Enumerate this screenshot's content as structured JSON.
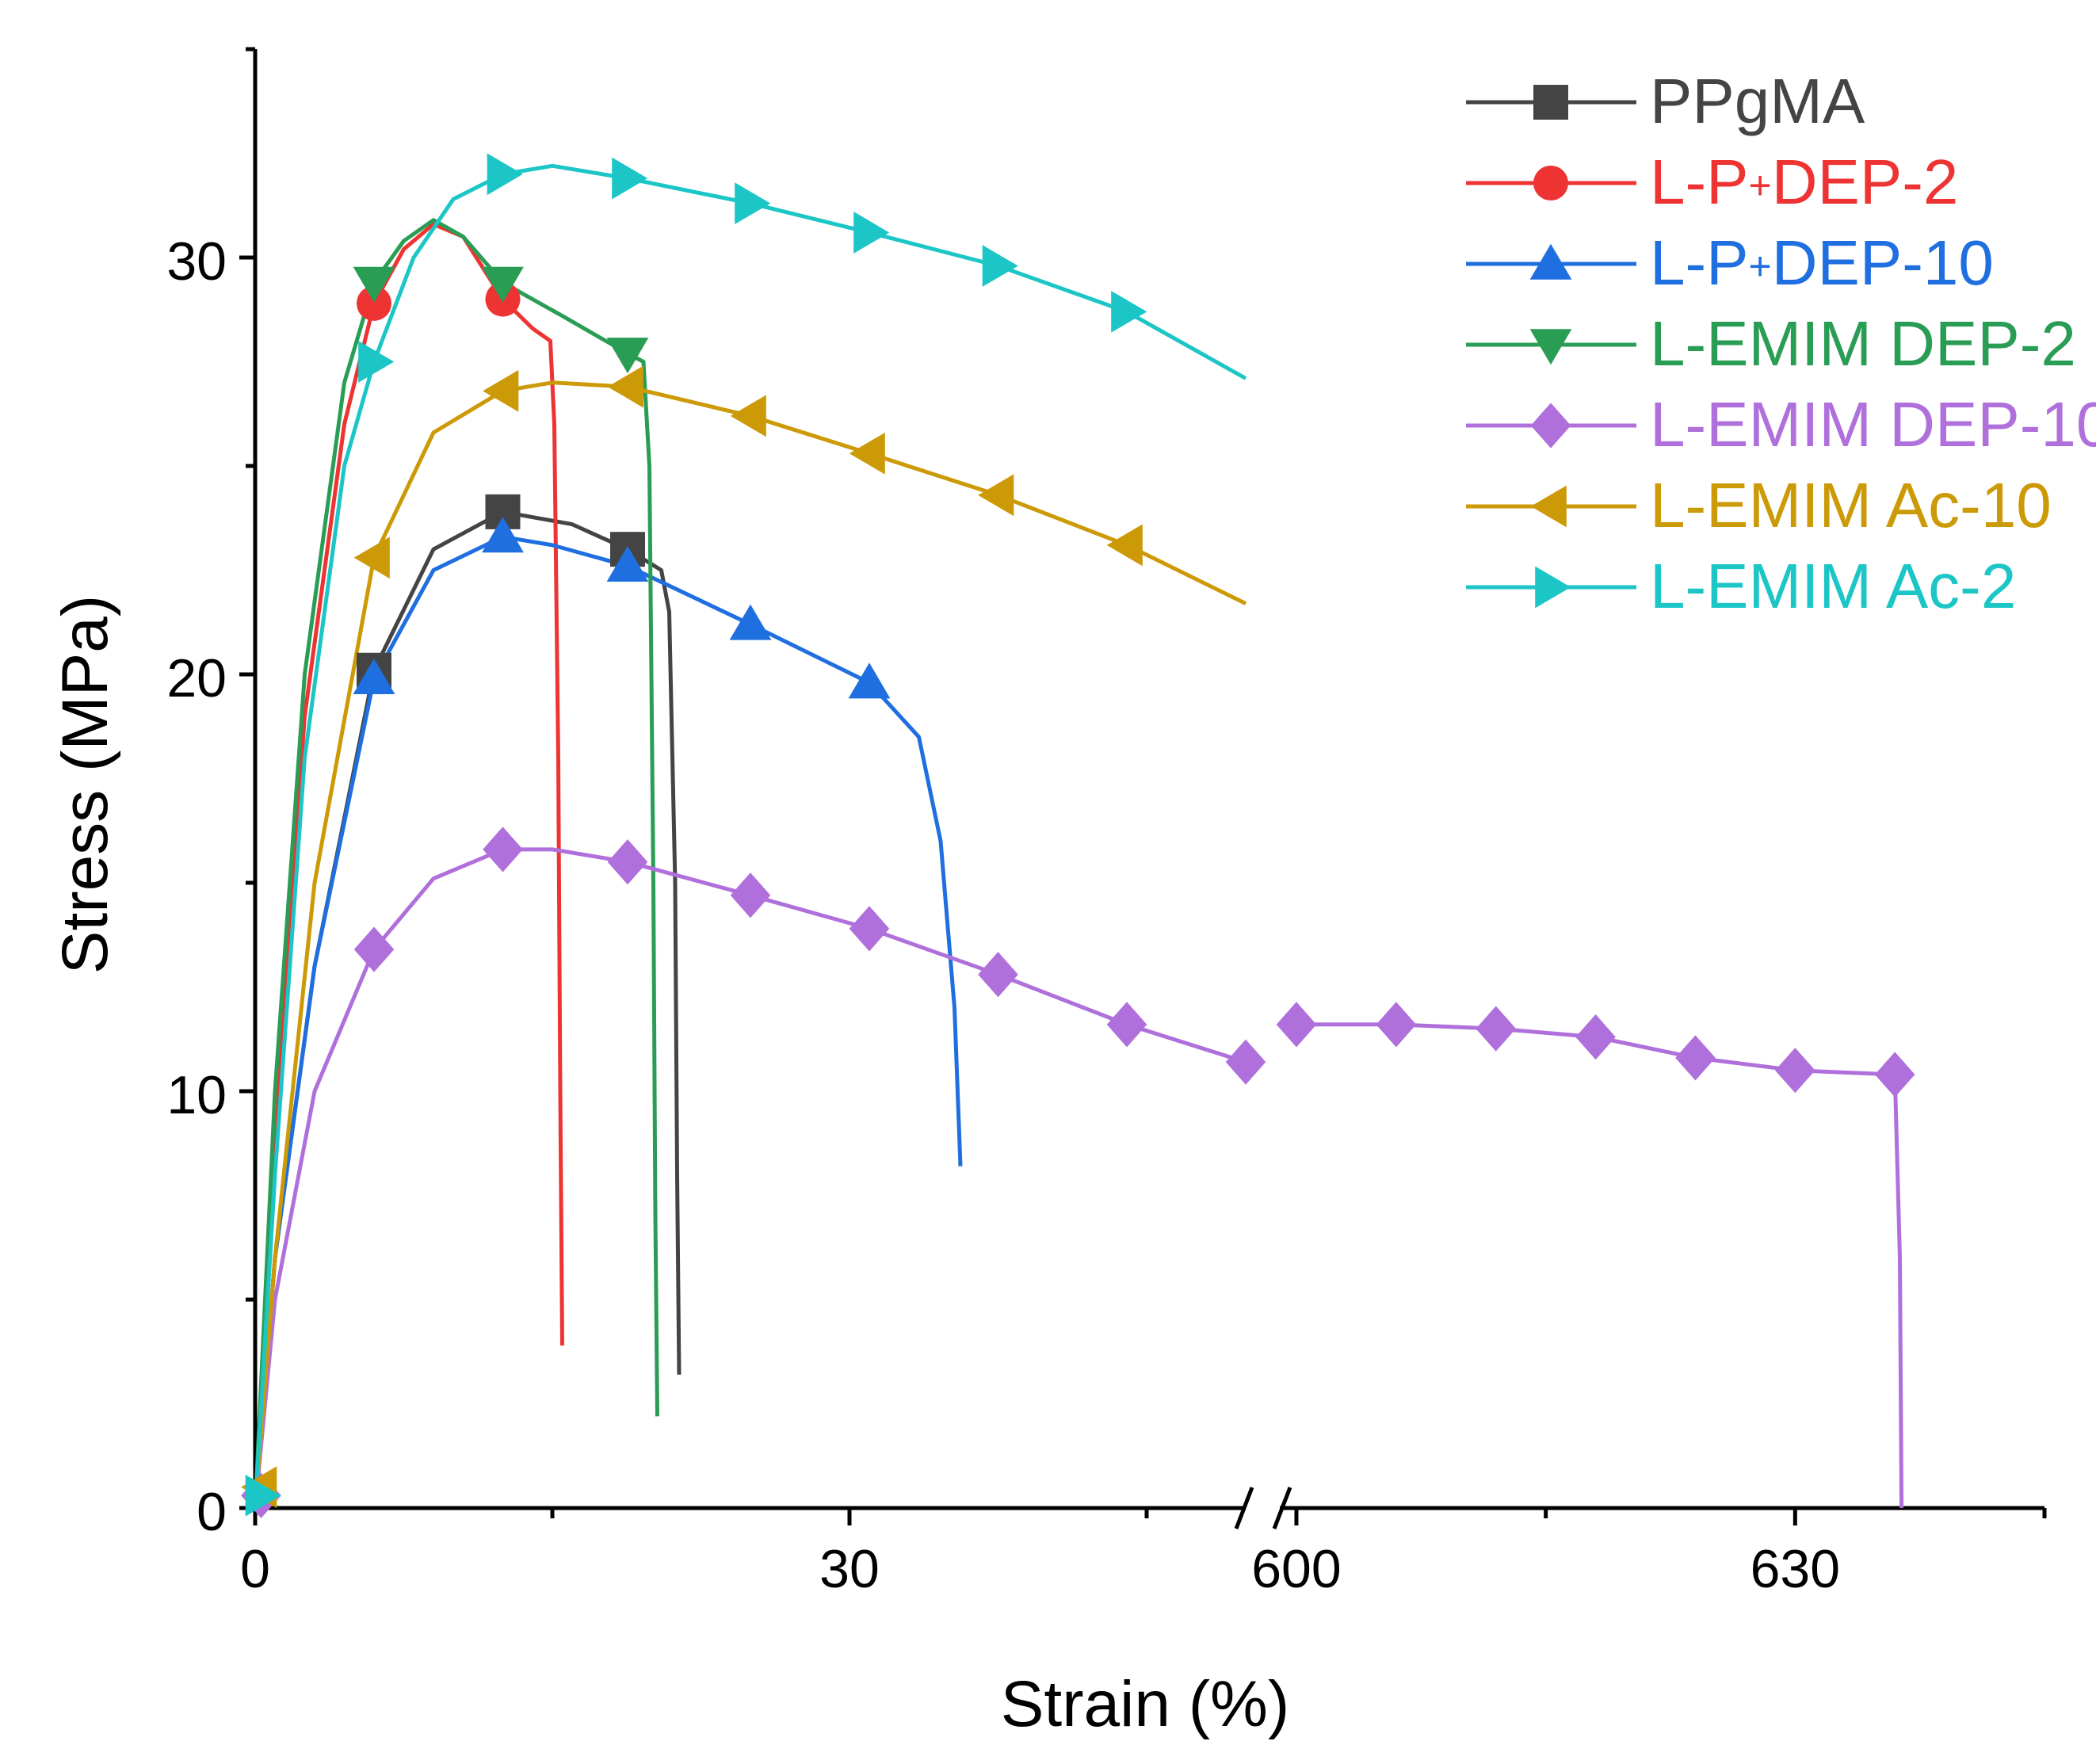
{
  "chart_data": {
    "type": "line",
    "xlabel": "Strain (%)",
    "ylabel": "Stress (MPa)",
    "ylim": [
      0,
      35
    ],
    "y_ticks": [
      "0",
      "10",
      "20",
      "30"
    ],
    "x_segments": [
      {
        "range": [
          0,
          50
        ],
        "ticks": [
          "0",
          "30"
        ]
      },
      {
        "range": [
          599,
          645
        ],
        "ticks": [
          "600",
          "630"
        ]
      }
    ],
    "x_break_symbol": "//",
    "series": [
      {
        "name": "PPgMA",
        "label_main": "PPgMA",
        "label_sup": "",
        "label_tail": "",
        "color": "#444444",
        "marker": "square",
        "points": [
          [
            0,
            0
          ],
          [
            1,
            6
          ],
          [
            3,
            13
          ],
          [
            6,
            20.1
          ],
          [
            9,
            23
          ],
          [
            12.5,
            23.9
          ],
          [
            16,
            23.6
          ],
          [
            18.8,
            23.0
          ],
          [
            20.5,
            22.5
          ],
          [
            20.9,
            21.5
          ],
          [
            21.2,
            15
          ],
          [
            21.3,
            8
          ],
          [
            21.4,
            3.2
          ]
        ],
        "marker_points": [
          [
            6,
            20.1
          ],
          [
            12.5,
            23.9
          ],
          [
            18.8,
            23.0
          ]
        ]
      },
      {
        "name": "L-P+DEP-2",
        "label_main": "L-P",
        "label_sup": "+",
        "label_tail": "DEP-2",
        "color": "#ee3333",
        "marker": "circle",
        "points": [
          [
            0,
            0
          ],
          [
            1,
            9
          ],
          [
            2.5,
            19
          ],
          [
            4.5,
            26
          ],
          [
            6,
            28.9
          ],
          [
            7.5,
            30.2
          ],
          [
            9,
            30.8
          ],
          [
            10.5,
            30.5
          ],
          [
            12.5,
            29
          ],
          [
            14,
            28.3
          ],
          [
            14.9,
            28
          ],
          [
            15.1,
            26
          ],
          [
            15.3,
            18
          ],
          [
            15.4,
            10
          ],
          [
            15.5,
            3.9
          ]
        ],
        "marker_points": [
          [
            6,
            28.9
          ],
          [
            12.5,
            29.0
          ]
        ]
      },
      {
        "name": "L-P+DEP-10",
        "label_main": "L-P",
        "label_sup": "+",
        "label_tail": "DEP-10",
        "color": "#1f6fe0",
        "marker": "triangle-up",
        "points": [
          [
            0,
            0
          ],
          [
            1,
            6
          ],
          [
            3,
            13
          ],
          [
            6,
            19.9
          ],
          [
            9,
            22.5
          ],
          [
            12.5,
            23.3
          ],
          [
            15,
            23.1
          ],
          [
            18.8,
            22.6
          ],
          [
            25,
            21.2
          ],
          [
            31,
            19.8
          ],
          [
            33.5,
            18.5
          ],
          [
            34.6,
            16
          ],
          [
            35.3,
            12
          ],
          [
            35.6,
            8.2
          ]
        ],
        "marker_points": [
          [
            6,
            19.9
          ],
          [
            12.5,
            23.3
          ],
          [
            18.8,
            22.6
          ],
          [
            25,
            21.2
          ],
          [
            31,
            19.8
          ]
        ]
      },
      {
        "name": "L-EMIM DEP-2",
        "label_main": "L-EMIM DEP-2",
        "label_sup": "",
        "label_tail": "",
        "color": "#2a9d55",
        "marker": "triangle-down",
        "points": [
          [
            0,
            0
          ],
          [
            1,
            10
          ],
          [
            2.5,
            20
          ],
          [
            4.5,
            27
          ],
          [
            6,
            29.4
          ],
          [
            7.5,
            30.4
          ],
          [
            9,
            30.9
          ],
          [
            10.5,
            30.5
          ],
          [
            12.5,
            29.4
          ],
          [
            15.5,
            28.6
          ],
          [
            18.8,
            27.7
          ],
          [
            19.6,
            27.5
          ],
          [
            19.9,
            25
          ],
          [
            20.1,
            15
          ],
          [
            20.2,
            7
          ],
          [
            20.3,
            2.2
          ]
        ],
        "marker_points": [
          [
            6,
            29.4
          ],
          [
            12.5,
            29.4
          ],
          [
            18.8,
            27.7
          ]
        ]
      },
      {
        "name": "L-EMIM DEP-10",
        "label_main": "L-EMIM DEP-10",
        "label_sup": "",
        "label_tail": "",
        "color": "#b070dc",
        "marker": "diamond",
        "points": [
          [
            0,
            0
          ],
          [
            1,
            5
          ],
          [
            3,
            10
          ],
          [
            6,
            13.4
          ],
          [
            9,
            15.1
          ],
          [
            12.5,
            15.8
          ],
          [
            15,
            15.8
          ],
          [
            18.8,
            15.5
          ],
          [
            25,
            14.7
          ],
          [
            31,
            13.9
          ],
          [
            37.5,
            12.8
          ],
          [
            44,
            11.6
          ],
          [
            50,
            10.7
          ],
          [
            600,
            11.6
          ],
          [
            606,
            11.6
          ],
          [
            612,
            11.5
          ],
          [
            618,
            11.3
          ],
          [
            624,
            10.8
          ],
          [
            630,
            10.5
          ],
          [
            636,
            10.4
          ],
          [
            636.3,
            6
          ],
          [
            636.4,
            0
          ]
        ],
        "marker_points": [
          [
            0.3,
            0.3
          ],
          [
            6,
            13.4
          ],
          [
            12.5,
            15.8
          ],
          [
            18.8,
            15.5
          ],
          [
            25,
            14.7
          ],
          [
            31,
            13.9
          ],
          [
            37.5,
            12.8
          ],
          [
            44,
            11.6
          ],
          [
            50,
            10.7
          ],
          [
            600,
            11.6
          ],
          [
            606,
            11.6
          ],
          [
            612,
            11.5
          ],
          [
            618,
            11.3
          ],
          [
            624,
            10.8
          ],
          [
            630,
            10.5
          ],
          [
            636,
            10.4
          ]
        ]
      },
      {
        "name": "L-EMIM Ac-10",
        "label_main": "L-EMIM Ac-10",
        "label_sup": "",
        "label_tail": "",
        "color": "#cc9a06",
        "marker": "triangle-left",
        "points": [
          [
            0,
            0
          ],
          [
            1,
            6
          ],
          [
            3,
            15
          ],
          [
            6,
            22.8
          ],
          [
            9,
            25.8
          ],
          [
            12.5,
            26.8
          ],
          [
            15,
            27.0
          ],
          [
            18.8,
            26.9
          ],
          [
            25,
            26.2
          ],
          [
            31,
            25.3
          ],
          [
            37.5,
            24.3
          ],
          [
            44,
            23.1
          ],
          [
            50,
            21.7
          ]
        ],
        "marker_points": [
          [
            0.3,
            0.5
          ],
          [
            6,
            22.8
          ],
          [
            12.5,
            26.8
          ],
          [
            18.8,
            26.9
          ],
          [
            25,
            26.2
          ],
          [
            31,
            25.3
          ],
          [
            37.5,
            24.3
          ],
          [
            44,
            23.1
          ]
        ]
      },
      {
        "name": "L-EMIM Ac-2",
        "label_main": "L-EMIM Ac-2",
        "label_sup": "",
        "label_tail": "",
        "color": "#1cc6c6",
        "marker": "triangle-right",
        "points": [
          [
            0,
            0
          ],
          [
            1,
            8
          ],
          [
            2.5,
            18
          ],
          [
            4.5,
            25
          ],
          [
            6,
            27.5
          ],
          [
            8,
            30
          ],
          [
            10,
            31.4
          ],
          [
            12.5,
            32.0
          ],
          [
            15,
            32.2
          ],
          [
            18.8,
            31.9
          ],
          [
            25,
            31.3
          ],
          [
            31,
            30.6
          ],
          [
            37.5,
            29.8
          ],
          [
            44,
            28.7
          ],
          [
            50,
            27.1
          ]
        ],
        "marker_points": [
          [
            0.3,
            0.3
          ],
          [
            6,
            27.5
          ],
          [
            12.5,
            32.0
          ],
          [
            18.8,
            31.9
          ],
          [
            25,
            31.3
          ],
          [
            31,
            30.6
          ],
          [
            37.5,
            29.8
          ],
          [
            44,
            28.7
          ]
        ]
      }
    ]
  }
}
